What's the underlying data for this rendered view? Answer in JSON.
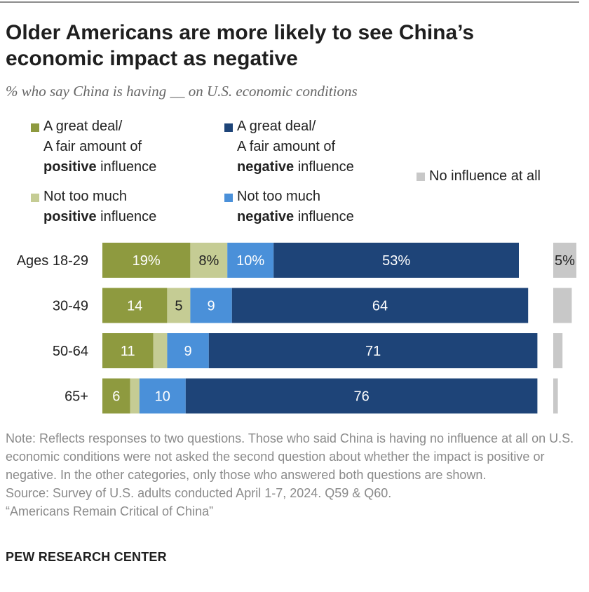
{
  "title": "Older Americans are more likely to see China’s economic impact as negative",
  "subtitle": "% who say China is having __ on U.S. economic conditions",
  "legend": {
    "great_positive": {
      "line1": "A great deal/",
      "line2": "A fair amount of",
      "bold": "positive",
      "rest": " influence"
    },
    "great_negative": {
      "line1": "A great deal/",
      "line2": "A fair amount of",
      "bold": "negative",
      "rest": " influence"
    },
    "little_positive": {
      "line1": "Not too much",
      "bold": "positive",
      "rest": " influence"
    },
    "little_negative": {
      "line1": "Not too much",
      "bold": "negative",
      "rest": " influence"
    },
    "none": {
      "line1": "No influence at all"
    }
  },
  "colors": {
    "great_positive": "#8e9a3f",
    "little_positive": "#c5cc94",
    "little_negative": "#4a90d9",
    "great_negative": "#1e4478",
    "none": "#c8c8c8"
  },
  "chart_data": {
    "type": "bar",
    "orientation": "horizontal",
    "stacked": true,
    "categories": [
      "Ages 18-29",
      "30-49",
      "50-64",
      "65+"
    ],
    "series": [
      {
        "key": "great_positive",
        "name": "A great deal/A fair amount of positive influence",
        "values": [
          19,
          14,
          11,
          6
        ],
        "labels": [
          "19%",
          "14",
          "11",
          "6"
        ]
      },
      {
        "key": "little_positive",
        "name": "Not too much positive influence",
        "values": [
          8,
          5,
          3,
          2
        ],
        "labels": [
          "8%",
          "5",
          "",
          ""
        ]
      },
      {
        "key": "little_negative",
        "name": "Not too much negative influence",
        "values": [
          10,
          9,
          9,
          10
        ],
        "labels": [
          "10%",
          "9",
          "9",
          "10"
        ]
      },
      {
        "key": "great_negative",
        "name": "A great deal/A fair amount of negative influence",
        "values": [
          53,
          64,
          71,
          76
        ],
        "labels": [
          "53%",
          "64",
          "71",
          "76"
        ]
      },
      {
        "key": "none",
        "name": "No influence at all",
        "values": [
          5,
          4,
          2,
          1
        ],
        "labels": [
          "5%",
          "",
          "",
          ""
        ]
      }
    ],
    "xlim": [
      0,
      100
    ]
  },
  "note": "Note: Reflects responses to two questions. Those who said China is having no influence at all on U.S. economic conditions were not asked the second question about whether the impact is positive or negative. In the other categories, only those who answered both questions are shown.",
  "source": "Source: Survey of U.S. adults conducted April 1-7, 2024. Q59 & Q60.",
  "report": "“Americans Remain Critical of China”",
  "brand": "PEW RESEARCH CENTER"
}
